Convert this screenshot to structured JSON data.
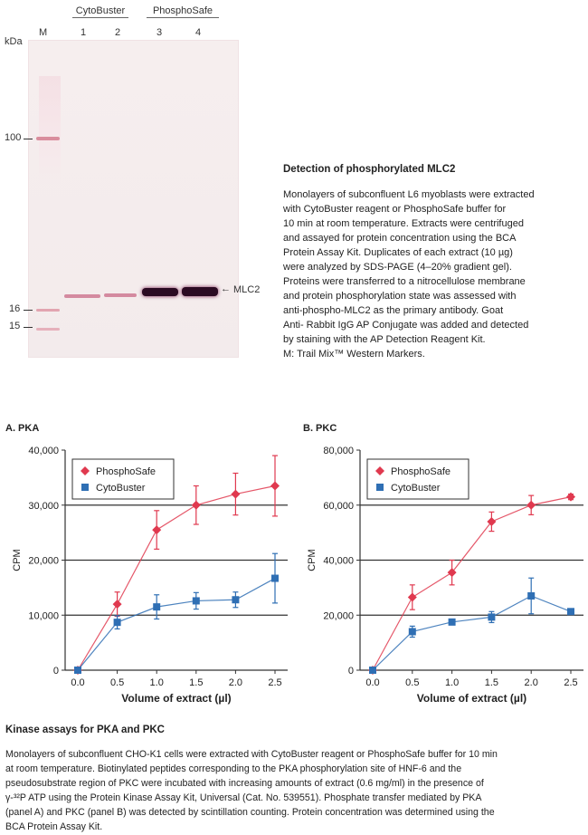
{
  "blot": {
    "kda_label": "kDa",
    "lane_groups": [
      {
        "name": "CytoBuster"
      },
      {
        "name": "PhosphoSafe"
      }
    ],
    "lanes": [
      "M",
      "1",
      "2",
      "3",
      "4"
    ],
    "markers": [
      "100",
      "16",
      "15"
    ],
    "band_label": "MLC2",
    "arrow_glyph": "←"
  },
  "caption": {
    "title": "Detection of phosphorylated MLC2",
    "lines": [
      "Monolayers of subconfluent L6 myoblasts were extracted",
      "with CytoBuster reagent or PhosphoSafe buffer for",
      "10 min at room temperature. Extracts were centrifuged",
      "and assayed for protein concentration using the BCA",
      "Protein Assay Kit. Duplicates of each extract (10 µg)",
      "were analyzed by SDS-PAGE (4–20% gradient gel).",
      "Proteins were transferred to a nitrocellulose membrane",
      "and protein phosphorylation state was assessed with",
      "anti-phospho-MLC2 as the primary antibody. Goat",
      "Anti- Rabbit IgG AP Conjugate was added and detected",
      "by staining with the AP Detection Reagent Kit.",
      "M: Trail Mix™ Western Markers."
    ]
  },
  "panels": {
    "a_title": "A. PKA",
    "b_title": "B. PKC"
  },
  "chart_data": [
    {
      "type": "line",
      "title": "A. PKA",
      "xlabel": "Volume of extract (µl)",
      "ylabel": "CPM",
      "x": [
        0.0,
        0.5,
        1.0,
        1.5,
        2.0,
        2.5
      ],
      "x_ticks": [
        "0.0",
        "0.5",
        "1.0",
        "1.5",
        "2.0",
        "2.5"
      ],
      "ylim": [
        0,
        40000
      ],
      "y_ticks": [
        "0",
        "10,000",
        "20,000",
        "30,000",
        "40,000"
      ],
      "gridlines": [
        10000,
        20000,
        30000
      ],
      "legend": "top-left",
      "series": [
        {
          "name": "PhosphoSafe",
          "color": "#e0394f",
          "marker": "diamond",
          "values": [
            0,
            12000,
            25500,
            30000,
            32000,
            33500
          ],
          "errors": [
            0,
            2200,
            3500,
            3500,
            3800,
            5500
          ]
        },
        {
          "name": "CytoBuster",
          "color": "#2f6fb4",
          "marker": "square",
          "values": [
            0,
            8700,
            11500,
            12600,
            12800,
            16700
          ],
          "errors": [
            0,
            1200,
            2200,
            1500,
            1400,
            4500
          ]
        }
      ]
    },
    {
      "type": "line",
      "title": "B. PKC",
      "xlabel": "Volume of extract (µl)",
      "ylabel": "CPM",
      "x": [
        0.0,
        0.5,
        1.0,
        1.5,
        2.0,
        2.5
      ],
      "x_ticks": [
        "0.0",
        "0.5",
        "1.0",
        "1.5",
        "2.0",
        "2.5"
      ],
      "ylim": [
        0,
        80000
      ],
      "y_ticks": [
        "0",
        "20,000",
        "40,000",
        "60,000",
        "80,000"
      ],
      "gridlines": [
        20000,
        40000,
        60000
      ],
      "legend": "top-left",
      "series": [
        {
          "name": "PhosphoSafe",
          "color": "#e0394f",
          "marker": "diamond",
          "values": [
            0,
            26500,
            35500,
            54000,
            60000,
            63000
          ],
          "errors": [
            0,
            4500,
            4500,
            3500,
            3500,
            1000
          ]
        },
        {
          "name": "CytoBuster",
          "color": "#2f6fb4",
          "marker": "square",
          "values": [
            0,
            14000,
            17500,
            19300,
            27000,
            21300
          ],
          "errors": [
            0,
            2000,
            1000,
            2000,
            6500,
            1000
          ]
        }
      ]
    }
  ],
  "bottom": {
    "title": "Kinase assays for PKA and PKC",
    "lines": [
      "Monolayers of subconfluent CHO-K1 cells were extracted with CytoBuster reagent or PhosphoSafe buffer for 10 min",
      "at room temperature. Biotinylated peptides corresponding to the PKA phosphorylation site of HNF-6 and the",
      "pseudosubstrate region of PKC were incubated with increasing amounts of extract (0.6 mg/ml) in the presence of",
      "γ-³²P ATP using the Protein Kinase Assay Kit, Universal (Cat. No. 539551). Phosphate transfer mediated by PKA",
      "(panel A) and PKC (panel B) was detected by scintillation counting. Protein concentration was determined using the",
      "BCA Protein Assay Kit."
    ]
  },
  "colors": {
    "phosphosafe": "#e0394f",
    "cytobuster": "#2f6fb4",
    "band": "#2a0a22",
    "marker_band": "#d88a9a"
  }
}
